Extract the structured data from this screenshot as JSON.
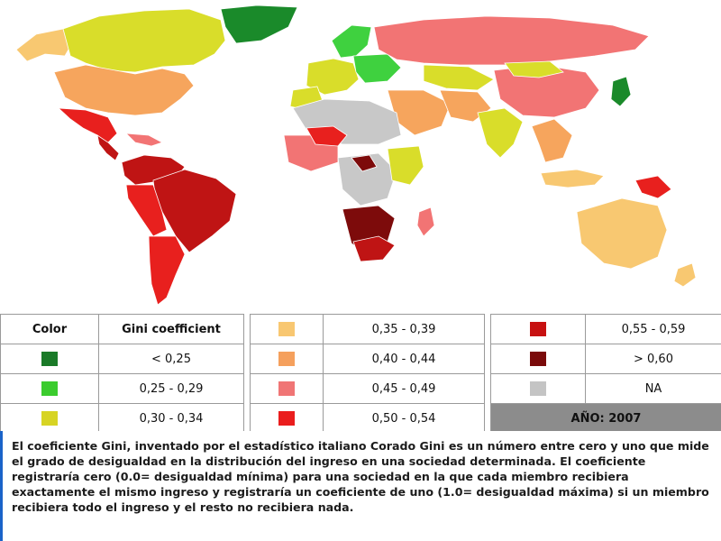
{
  "map": {
    "colors": {
      "lt25": "#1a8a2a",
      "r25_29": "#3fd13f",
      "r30_34": "#d9dd2a",
      "r35_39": "#f8c871",
      "r40_44": "#f6a55d",
      "r45_49": "#f27474",
      "r50_54": "#e8201e",
      "r55_59": "#bf1414",
      "gt60": "#7d0b0b",
      "na": "#c8c8c8"
    }
  },
  "legend": {
    "header_color": "Color",
    "header_gini": "Gini coefficient",
    "rows": [
      {
        "label": "< 0,25",
        "color": "#1a7a28"
      },
      {
        "label": "0,25 - 0,29",
        "color": "#3bcc2e"
      },
      {
        "label": "0,30 - 0,34",
        "color": "#d7d424"
      },
      {
        "label": "0,35 - 0,39",
        "color": "#f8c771"
      },
      {
        "label": "0,40 - 0,44",
        "color": "#f5a05d"
      },
      {
        "label": "0,45 - 0,49",
        "color": "#f07575"
      },
      {
        "label": "0,50 - 0,54",
        "color": "#ea1d1d"
      },
      {
        "label": "0,55 - 0,59",
        "color": "#c71111"
      },
      {
        "label": "> 0,60",
        "color": "#7a0a0a"
      },
      {
        "label": "NA",
        "color": "#c4c4c4"
      }
    ],
    "year": "AÑO: 2007"
  },
  "description": "El coeficiente Gini, inventado por el estadístico italiano Corado Gini es un número entre cero y uno que mide el grado de desigualdad en la distribución del ingreso en una sociedad determinada. El coeficiente registraría cero (0.0= desigualdad mínima) para una sociedad en la que cada miembro recibiera exactamente el mismo ingreso y registraría un coeficiente de uno (1.0= desigualdad máxima) si un miembro recibiera todo el ingreso y el resto no recibiera nada."
}
